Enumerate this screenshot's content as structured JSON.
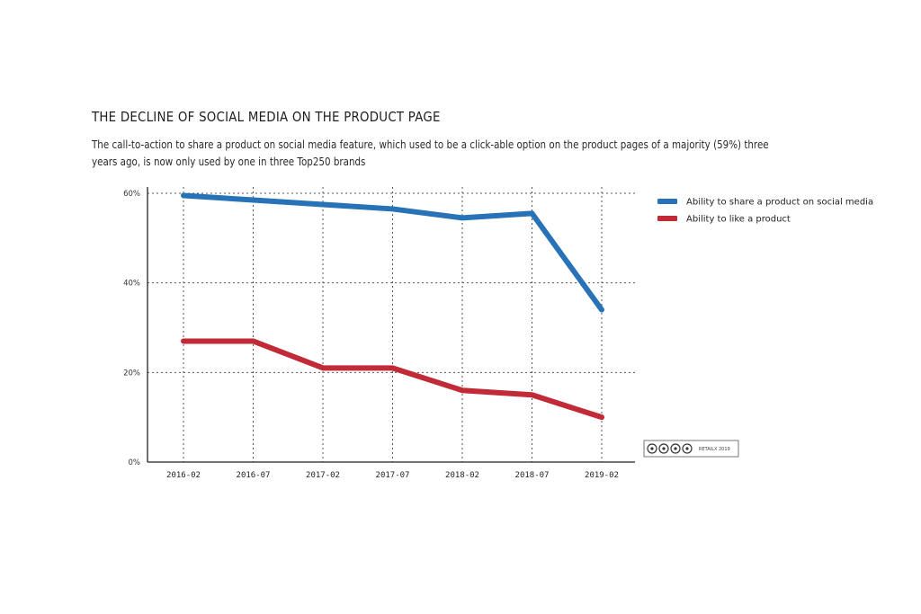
{
  "title": "THE DECLINE OF SOCIAL MEDIA ON THE PRODUCT PAGE",
  "subtitle": "The call-to-action to share a product on social media feature, which used to be a click-able option on the product pages of a majority (59%) three years ago, is now only used by one in three Top250 brands",
  "credit": {
    "license_icons": [
      "cc-icon",
      "by-icon",
      "nc-icon",
      "nd-icon"
    ],
    "text": "RETAILX 2019"
  },
  "chart_data": {
    "type": "line",
    "categories": [
      "2016-02",
      "2016-07",
      "2017-02",
      "2017-07",
      "2018-02",
      "2018-07",
      "2019-02"
    ],
    "series": [
      {
        "name": "Ability to share a product on social media",
        "color": "#2873b7",
        "values": [
          59.5,
          58.5,
          57.5,
          56.5,
          54.5,
          55.5,
          34
        ]
      },
      {
        "name": "Ability to like a product",
        "color": "#c12a37",
        "values": [
          27,
          27,
          21,
          21,
          16,
          15,
          10
        ]
      }
    ],
    "y_ticks": [
      {
        "value": 0,
        "label": "0%"
      },
      {
        "value": 20,
        "label": "20%"
      },
      {
        "value": 40,
        "label": "40%"
      },
      {
        "value": 60,
        "label": "60%"
      }
    ],
    "ylim": [
      0,
      60
    ],
    "grid": "dashed",
    "legend_position": "right"
  }
}
